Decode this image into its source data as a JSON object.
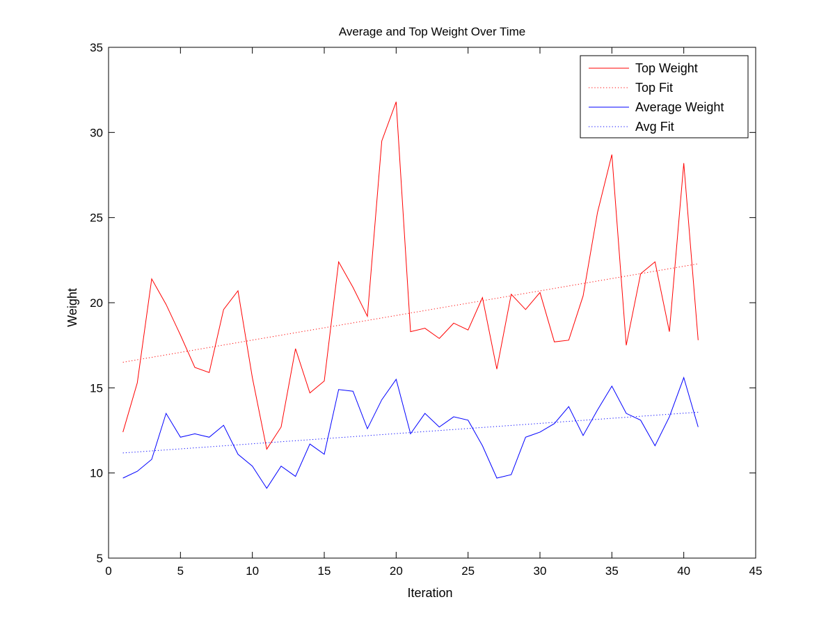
{
  "chart_data": {
    "type": "line",
    "title": "Average and Top Weight Over Time",
    "xlabel": "Iteration",
    "ylabel": "Weight",
    "xlim": [
      0,
      45
    ],
    "ylim": [
      5,
      35
    ],
    "xticks": [
      0,
      5,
      10,
      15,
      20,
      25,
      30,
      35,
      40,
      45
    ],
    "yticks": [
      5,
      10,
      15,
      20,
      25,
      30,
      35
    ],
    "grid": false,
    "legend_position": "top-right",
    "x": [
      1,
      2,
      3,
      4,
      5,
      6,
      7,
      8,
      9,
      10,
      11,
      12,
      13,
      14,
      15,
      16,
      17,
      18,
      19,
      20,
      21,
      22,
      23,
      24,
      25,
      26,
      27,
      28,
      29,
      30,
      31,
      32,
      33,
      34,
      35,
      36,
      37,
      38,
      39,
      40,
      41
    ],
    "series": [
      {
        "name": "Top Weight",
        "color": "#ff0000",
        "style": "solid",
        "values": [
          12.4,
          15.3,
          21.4,
          19.9,
          18.1,
          16.2,
          15.9,
          19.6,
          20.7,
          15.6,
          11.4,
          12.7,
          17.3,
          14.7,
          15.4,
          22.4,
          20.9,
          19.2,
          29.5,
          31.8,
          18.3,
          18.5,
          17.9,
          18.8,
          18.4,
          20.3,
          16.1,
          20.5,
          19.6,
          20.6,
          17.7,
          17.8,
          20.4,
          25.3,
          28.7,
          17.5,
          21.7,
          22.4,
          18.3,
          28.2,
          17.8
        ]
      },
      {
        "name": "Top Fit",
        "color": "#ff0000",
        "style": "dotted",
        "fit_of": "Top Weight"
      },
      {
        "name": "Average Weight",
        "color": "#0000ff",
        "style": "solid",
        "values": [
          9.7,
          10.1,
          10.8,
          13.5,
          12.1,
          12.3,
          12.1,
          12.8,
          11.1,
          10.4,
          9.1,
          10.4,
          9.8,
          11.7,
          11.1,
          14.9,
          14.8,
          12.6,
          14.3,
          15.5,
          12.3,
          13.5,
          12.7,
          13.3,
          13.1,
          11.6,
          9.7,
          9.9,
          12.1,
          12.4,
          12.9,
          13.9,
          12.2,
          13.7,
          15.1,
          13.5,
          13.1,
          11.6,
          13.3,
          15.6,
          12.7
        ]
      },
      {
        "name": "Avg Fit",
        "color": "#0000ff",
        "style": "dotted",
        "fit_of": "Average Weight"
      }
    ]
  }
}
